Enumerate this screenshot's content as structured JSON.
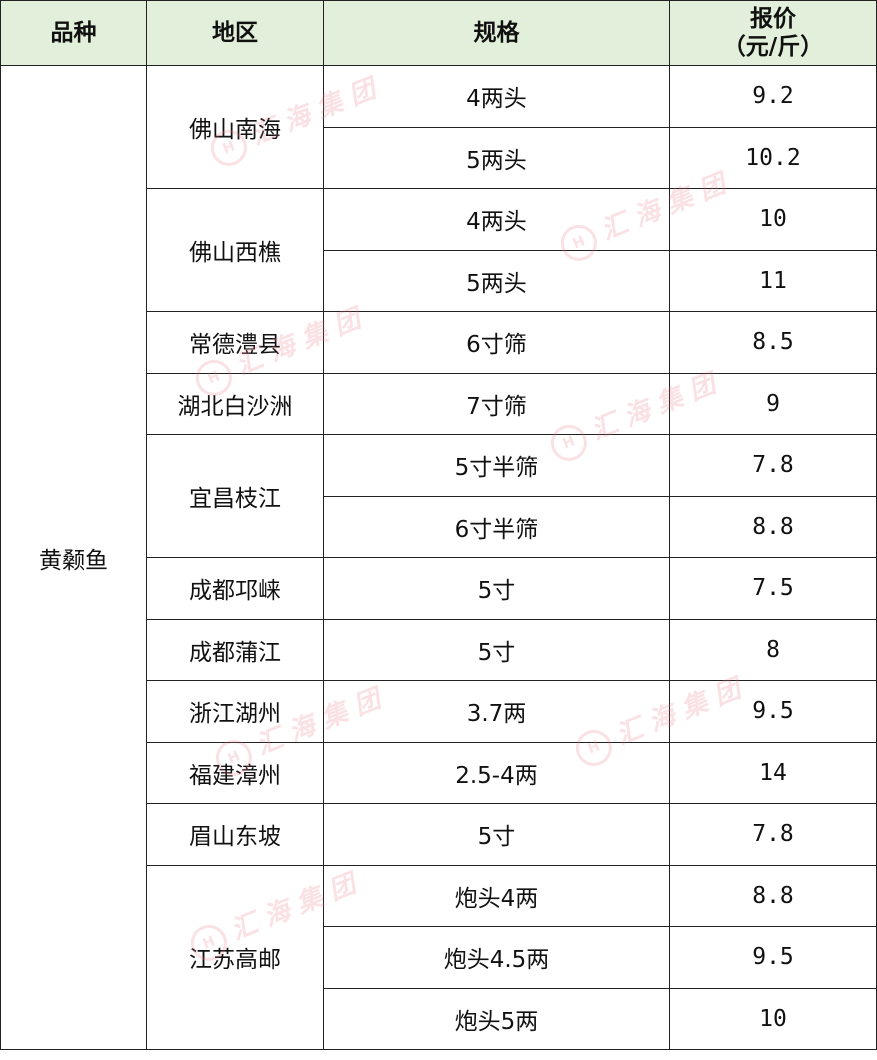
{
  "table": {
    "headers": [
      "品种",
      "地区",
      "规格",
      "报价",
      "（元/斤）"
    ],
    "variety": "黄颡鱼",
    "groups": [
      {
        "region": "佛山南海",
        "rows": [
          {
            "spec": "4两头",
            "price": "9.2"
          },
          {
            "spec": "5两头",
            "price": "10.2"
          }
        ]
      },
      {
        "region": "佛山西樵",
        "rows": [
          {
            "spec": "4两头",
            "price": "10"
          },
          {
            "spec": "5两头",
            "price": "11"
          }
        ]
      },
      {
        "region": "常德澧县",
        "rows": [
          {
            "spec": "6寸筛",
            "price": "8.5"
          }
        ]
      },
      {
        "region": "湖北白沙洲",
        "rows": [
          {
            "spec": "7寸筛",
            "price": "9"
          }
        ]
      },
      {
        "region": "宜昌枝江",
        "rows": [
          {
            "spec": "5寸半筛",
            "price": "7.8"
          },
          {
            "spec": "6寸半筛",
            "price": "8.8"
          }
        ]
      },
      {
        "region": "成都邛崃",
        "rows": [
          {
            "spec": "5寸",
            "price": "7.5"
          }
        ]
      },
      {
        "region": "成都蒲江",
        "rows": [
          {
            "spec": "5寸",
            "price": "8"
          }
        ]
      },
      {
        "region": "浙江湖州",
        "rows": [
          {
            "spec": "3.7两",
            "price": "9.5"
          }
        ]
      },
      {
        "region": "福建漳州",
        "rows": [
          {
            "spec": "2.5-4两",
            "price": "14"
          }
        ]
      },
      {
        "region": "眉山东坡",
        "rows": [
          {
            "spec": "5寸",
            "price": "7.8"
          }
        ]
      },
      {
        "region": "江苏高邮",
        "rows": [
          {
            "spec": "炮头4两",
            "price": "8.8"
          },
          {
            "spec": "炮头4.5两",
            "price": "9.5"
          },
          {
            "spec": "炮头5两",
            "price": "10"
          }
        ]
      }
    ]
  },
  "watermark": "汇海集团",
  "colors": {
    "header_bg": "#e2efda",
    "watermark": "#e67882"
  }
}
